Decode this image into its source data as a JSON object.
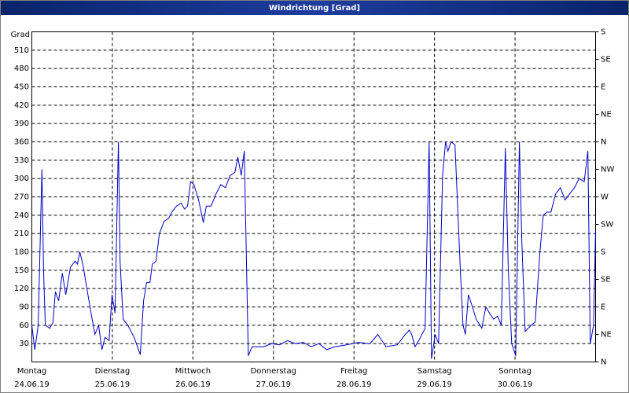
{
  "chart_data": {
    "type": "line",
    "title": "Windrichtung [Grad]",
    "y_label": "Grad",
    "x": [
      0,
      0.9,
      1.9,
      3.0,
      3.5,
      4.0,
      5.4,
      6.3,
      7.0,
      8.0,
      9.1,
      10.1,
      11.5,
      12.9,
      13.6,
      14.3,
      15.2,
      16.4,
      17.8,
      18.8,
      19.9,
      20.9,
      21.8,
      23.0,
      23.9,
      24.8,
      25.8,
      26.3,
      27.2,
      28.6,
      30.5,
      32.3,
      33.3,
      34.2,
      35.2,
      35.9,
      37.0,
      38.0,
      39.4,
      40.8,
      41.7,
      43.1,
      44.5,
      45.5,
      46.4,
      47.3,
      48.3,
      49.7,
      51.1,
      52.0,
      53.4,
      54.9,
      56.3,
      57.7,
      59.1,
      60.5,
      61.4,
      62.4,
      63.3,
      64.5,
      65.6,
      69.1,
      71.5,
      73.8,
      76.2,
      78.5,
      80.9,
      83.2,
      85.6,
      87.9,
      90.3,
      93.8,
      97.3,
      100.8,
      103.1,
      105.5,
      108.9,
      111.3,
      112.5,
      113.2,
      114.2,
      115.3,
      117.2,
      118.4,
      119.1,
      120.2,
      121.2,
      122.4,
      123.3,
      124.0,
      124.9,
      126.1,
      127.7,
      128.5,
      129.2,
      130.1,
      131.3,
      132.4,
      134.1,
      135.3,
      136.4,
      137.6,
      138.8,
      139.9,
      141.1,
      142.0,
      143.0,
      144.2,
      145.3,
      146.0,
      147.0,
      148.8,
      150.0,
      151.4,
      152.4,
      153.5,
      154.7,
      156.1,
      157.5,
      158.9,
      160.3,
      161.7,
      163.1,
      164.6,
      165.7,
      166.4,
      167.4,
      168
    ],
    "series": [
      {
        "name": "Windrichtung",
        "color": "#0000c8",
        "values": [
          60,
          20,
          60,
          315,
          150,
          60,
          55,
          65,
          115,
          100,
          145,
          110,
          155,
          165,
          160,
          180,
          160,
          120,
          75,
          45,
          60,
          20,
          40,
          35,
          110,
          80,
          360,
          165,
          70,
          60,
          40,
          12,
          100,
          130,
          130,
          160,
          165,
          210,
          230,
          235,
          245,
          255,
          260,
          250,
          255,
          295,
          290,
          265,
          228,
          255,
          255,
          275,
          290,
          285,
          305,
          310,
          335,
          305,
          345,
          10,
          25,
          25,
          30,
          28,
          35,
          30,
          32,
          25,
          30,
          20,
          25,
          28,
          32,
          30,
          45,
          25,
          28,
          45,
          52,
          45,
          25,
          35,
          55,
          360,
          5,
          45,
          30,
          305,
          360,
          345,
          360,
          355,
          150,
          60,
          45,
          110,
          90,
          70,
          55,
          90,
          80,
          70,
          75,
          60,
          350,
          150,
          30,
          10,
          360,
          200,
          50,
          60,
          65,
          180,
          240,
          245,
          245,
          275,
          285,
          265,
          275,
          285,
          300,
          295,
          345,
          30,
          60,
          215
        ]
      }
    ],
    "xlim": [
      0,
      168
    ],
    "xticks": [
      {
        "value": 0,
        "label": "Montag"
      },
      {
        "value": 24,
        "label": "Dienstag"
      },
      {
        "value": 48,
        "label": "Mittwoch"
      },
      {
        "value": 72,
        "label": "Donnerstag"
      },
      {
        "value": 96,
        "label": "Freitag"
      },
      {
        "value": 120,
        "label": "Samstag"
      },
      {
        "value": 144,
        "label": "Sonntag"
      }
    ],
    "xtick_dates": [
      "24.06.19",
      "25.06.19",
      "26.06.19",
      "27.06.19",
      "28.06.19",
      "29.06.19",
      "30.06.19"
    ],
    "ylim": [
      0,
      540
    ],
    "yticks": [
      30,
      60,
      90,
      120,
      150,
      180,
      210,
      240,
      270,
      300,
      330,
      360,
      390,
      420,
      450,
      480,
      510
    ],
    "y2lim": [
      0,
      540
    ],
    "y2ticks": [
      {
        "value": 0,
        "label": "N"
      },
      {
        "value": 45,
        "label": "NE"
      },
      {
        "value": 90,
        "label": "E"
      },
      {
        "value": 135,
        "label": "SE"
      },
      {
        "value": 180,
        "label": "S"
      },
      {
        "value": 225,
        "label": "SW"
      },
      {
        "value": 270,
        "label": "W"
      },
      {
        "value": 315,
        "label": "NW"
      },
      {
        "value": 360,
        "label": "N"
      },
      {
        "value": 405,
        "label": "NE"
      },
      {
        "value": 450,
        "label": "E"
      },
      {
        "value": 495,
        "label": "SE"
      },
      {
        "value": 540,
        "label": "S"
      }
    ],
    "grid": true
  }
}
